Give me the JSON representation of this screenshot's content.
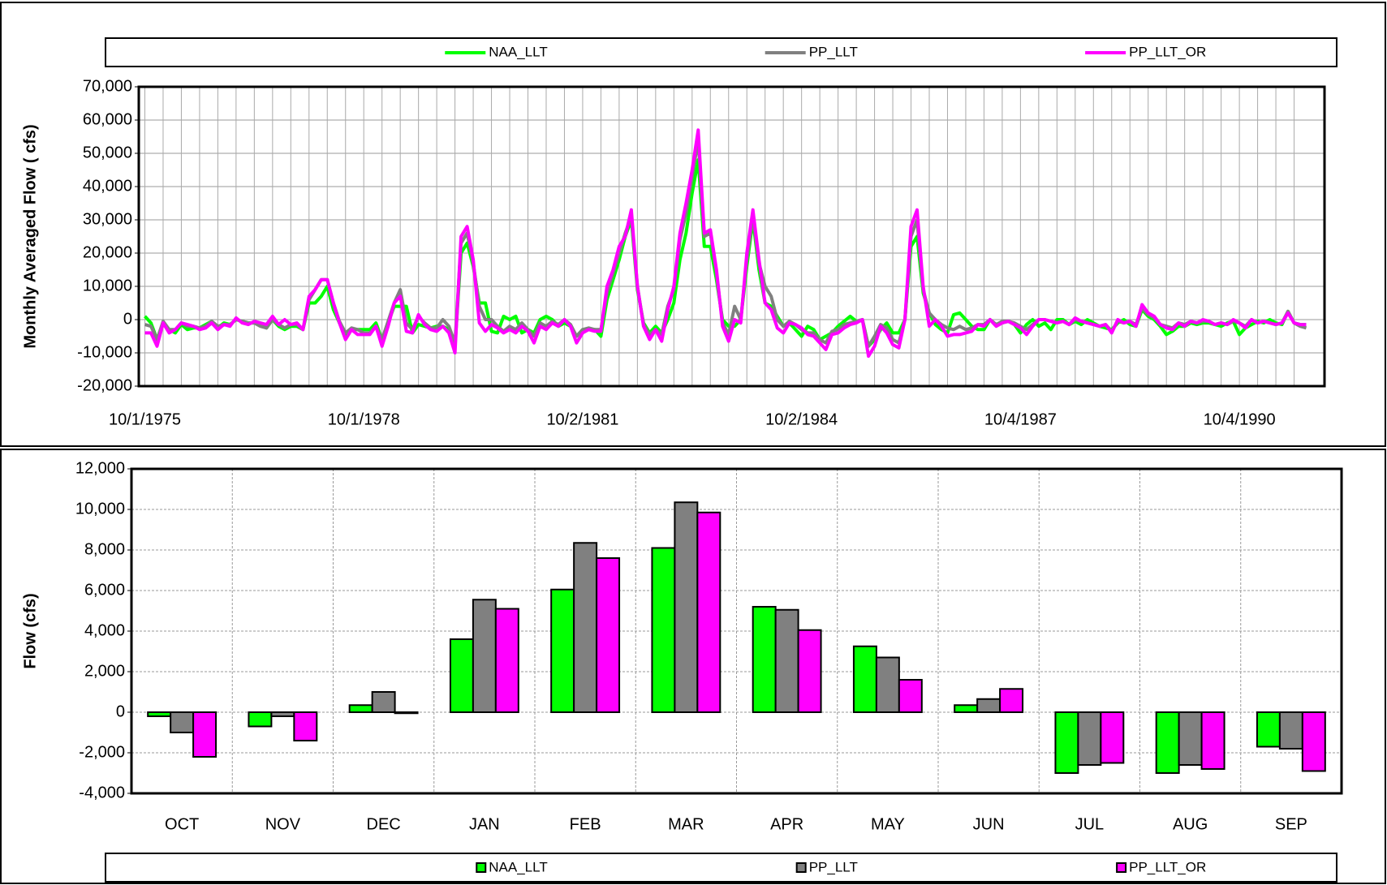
{
  "chart_data": [
    {
      "type": "line",
      "ylabel": "Monthly Averaged Flow  ( cfs)",
      "categories": [
        "10/1/1975",
        null,
        null,
        null,
        null,
        null,
        null,
        null,
        null,
        null,
        null,
        null,
        null,
        null,
        null,
        null,
        null,
        null,
        null,
        null,
        null,
        null,
        null,
        null,
        null,
        null,
        null,
        null,
        null,
        null,
        null,
        null,
        null,
        null,
        null,
        null,
        "10/1/1978",
        null,
        null,
        null,
        null,
        null,
        null,
        null,
        null,
        null,
        null,
        null,
        null,
        null,
        null,
        null,
        null,
        null,
        null,
        null,
        null,
        null,
        null,
        null,
        null,
        null,
        null,
        null,
        null,
        null,
        null,
        null,
        null,
        null,
        null,
        null,
        "10/2/1981",
        null,
        null,
        null,
        null,
        null,
        null,
        null,
        null,
        null,
        null,
        null,
        null,
        null,
        null,
        null,
        null,
        null,
        null,
        null,
        null,
        null,
        null,
        null,
        null,
        null,
        null,
        null,
        null,
        null,
        null,
        null,
        null,
        null,
        null,
        null,
        "10/2/1984",
        null,
        null,
        null,
        null,
        null,
        null,
        null,
        null,
        null,
        null,
        null,
        null,
        null,
        null,
        null,
        null,
        null,
        null,
        null,
        null,
        null,
        null,
        null,
        null,
        null,
        null,
        null,
        null,
        null,
        null,
        null,
        null,
        null,
        null,
        null,
        "10/4/1987",
        null,
        null,
        null,
        null,
        null,
        null,
        null,
        null,
        null,
        null,
        null,
        null,
        null,
        null,
        null,
        null,
        null,
        null,
        null,
        null,
        null,
        null,
        null,
        null,
        null,
        null,
        null,
        null,
        null,
        null,
        null,
        null,
        null,
        null,
        null,
        "10/4/1990",
        null,
        null,
        null,
        null,
        null,
        null,
        null,
        null,
        null,
        null,
        null
      ],
      "series": [
        {
          "name": "NAA_LLT",
          "color": "#00ff00",
          "values": [
            1000,
            -1000,
            -6000,
            -1000,
            -3000,
            -4000,
            -1500,
            -3000,
            -2500,
            -2500,
            -1500,
            -500,
            -2500,
            -1000,
            -1500,
            0,
            -500,
            -1000,
            -1000,
            -1500,
            -2500,
            0,
            -2000,
            -3000,
            -2000,
            -2000,
            -3000,
            5000,
            5000,
            7000,
            10000,
            3000,
            -1000,
            -5000,
            -3000,
            -3000,
            -3000,
            -3000,
            -1000,
            -6000,
            -1000,
            4000,
            4000,
            4000,
            -4000,
            -1500,
            -2000,
            -2500,
            -2000,
            -2000,
            -3000,
            -8000,
            20000,
            23000,
            16000,
            5000,
            5000,
            -3500,
            -4000,
            1000,
            0,
            1000,
            -4000,
            -3000,
            -4000,
            0,
            1000,
            0,
            -2000,
            -1000,
            -2000,
            -5000,
            -3000,
            -3000,
            -3000,
            -5000,
            6000,
            12000,
            18000,
            25000,
            30000,
            9000,
            -1000,
            -4000,
            -2000,
            -4000,
            0,
            5000,
            18000,
            26000,
            38000,
            48000,
            22000,
            22000,
            12000,
            0,
            -2000,
            -2000,
            0,
            16000,
            30000,
            15000,
            5000,
            4000,
            1000,
            -2000,
            -1000,
            -3000,
            -5000,
            -2000,
            -3000,
            -6000,
            -5000,
            -4000,
            -2000,
            -500,
            1000,
            -500,
            0,
            -8000,
            -6000,
            -3000,
            -1000,
            -4000,
            -4000,
            0,
            22000,
            25000,
            8000,
            2000,
            -1500,
            -3000,
            -4000,
            1500,
            2000,
            0,
            -2000,
            -3000,
            -3000,
            0,
            -1500,
            -1000,
            -500,
            -1500,
            -4000,
            -1500,
            0,
            -2000,
            -1000,
            -3000,
            0,
            0,
            -1500,
            -500,
            -1500,
            0,
            -1000,
            -2000,
            -2500,
            -3000,
            -1000,
            0,
            -1500,
            -2000,
            3000,
            1000,
            0,
            -2000,
            -4500,
            -3500,
            -2000,
            -2000,
            -1000,
            -1500,
            -1000,
            -1000,
            -1500,
            -2000,
            -1000,
            -500,
            -4500,
            -2500,
            -1500,
            -500,
            -1000,
            0,
            -1000,
            -1500,
            2500,
            -1000,
            -1500,
            -1500
          ]
        },
        {
          "name": "PP_LLT",
          "color": "#808080",
          "values": [
            -1500,
            -2000,
            -6000,
            -500,
            -3000,
            -3000,
            -1000,
            -2000,
            -2000,
            -2500,
            -2000,
            -500,
            -2000,
            -1500,
            -1500,
            0,
            -500,
            -1000,
            -1000,
            -2000,
            -2500,
            0,
            -1500,
            -2500,
            -1500,
            -1500,
            -3000,
            6000,
            9000,
            12000,
            12000,
            5000,
            -500,
            -4000,
            -2500,
            -3000,
            -4000,
            -4000,
            -2000,
            -6000,
            -500,
            5000,
            9000,
            -1000,
            -3000,
            1000,
            -1000,
            -2500,
            -2500,
            0,
            -2000,
            -7000,
            23000,
            26000,
            17000,
            4000,
            0,
            0,
            -2000,
            -3500,
            -2000,
            -3000,
            -1000,
            -3000,
            -5000,
            -1000,
            -2000,
            -500,
            -1500,
            0,
            -1500,
            -5000,
            -3000,
            -2500,
            -3000,
            -3000,
            8000,
            14000,
            20000,
            26000,
            31000,
            10000,
            -1500,
            -4500,
            -3000,
            -4500,
            4000,
            9000,
            24000,
            32000,
            43000,
            54000,
            25000,
            26000,
            14000,
            -1000,
            -4500,
            4000,
            0,
            18000,
            31000,
            17000,
            10000,
            7000,
            0,
            -2000,
            -500,
            -1500,
            -3000,
            -4000,
            -4000,
            -6000,
            -7000,
            -3500,
            -3000,
            -1500,
            -1000,
            -500,
            0,
            -8000,
            -5000,
            -1500,
            -2500,
            -6000,
            -7000,
            0,
            25000,
            30000,
            9000,
            2000,
            0,
            -1500,
            -2500,
            -3000,
            -2000,
            -3000,
            -2500,
            -1500,
            -1500,
            0,
            -1500,
            -500,
            -500,
            -1000,
            -2000,
            -3000,
            -1500,
            0,
            0,
            -500,
            -1000,
            -500,
            -1500,
            0,
            -500,
            -1000,
            -1500,
            -2000,
            -1500,
            -3500,
            -500,
            -1000,
            -500,
            -1500,
            3500,
            1500,
            500,
            -1500,
            -2000,
            -2500,
            -1000,
            -1500,
            -500,
            -1000,
            -500,
            -500,
            -1500,
            -1000,
            -1500,
            -500,
            -1000,
            -2000,
            0,
            -1000,
            -500,
            -1000,
            -1500,
            -1000,
            2500,
            -1000,
            -2000,
            -2500
          ]
        },
        {
          "name": "PP_LLT_OR",
          "color": "#ff00ff",
          "values": [
            -4000,
            -4000,
            -8000,
            -1000,
            -4000,
            -3000,
            -1000,
            -1500,
            -2000,
            -3000,
            -2500,
            -1000,
            -3000,
            -1500,
            -2000,
            500,
            -1000,
            -1500,
            -500,
            -1000,
            -1500,
            1000,
            -1500,
            0,
            -1500,
            -1000,
            -3000,
            7000,
            9000,
            12000,
            12000,
            5000,
            -1000,
            -6000,
            -3000,
            -4500,
            -4500,
            -4500,
            -2000,
            -8000,
            -2000,
            5000,
            7000,
            -3500,
            -4000,
            1500,
            -1500,
            -3000,
            -3500,
            -2000,
            -4000,
            -10000,
            25000,
            28000,
            18000,
            -1000,
            -3500,
            -1500,
            -2500,
            -4000,
            -3000,
            -4000,
            -2000,
            -3500,
            -7000,
            -2000,
            -3000,
            -1000,
            -2000,
            0,
            -2000,
            -7000,
            -4000,
            -3000,
            -3500,
            -3500,
            10000,
            15000,
            22000,
            25000,
            33000,
            10000,
            -2000,
            -6000,
            -3000,
            -6500,
            3000,
            10000,
            26000,
            35000,
            45000,
            57000,
            26000,
            27000,
            15000,
            -2000,
            -6500,
            0,
            -1000,
            20000,
            33000,
            18000,
            5000,
            3000,
            -2500,
            -4000,
            -1000,
            -1500,
            -2500,
            -4500,
            -5000,
            -7000,
            -9000,
            -4500,
            -4000,
            -2500,
            -1500,
            -1000,
            0,
            -11000,
            -8000,
            -2000,
            -4000,
            -7500,
            -8500,
            0,
            28000,
            33000,
            10000,
            -2000,
            0,
            -2000,
            -5000,
            -4500,
            -4500,
            -4000,
            -3500,
            -1500,
            -2000,
            0,
            -2000,
            -1000,
            -500,
            -1500,
            -2500,
            -4500,
            -2000,
            0,
            0,
            -500,
            -1000,
            -500,
            -1500,
            500,
            -500,
            -1000,
            -1500,
            -2000,
            -1500,
            -4000,
            0,
            -1000,
            -500,
            -2000,
            4500,
            2000,
            1000,
            -1500,
            -2500,
            -3000,
            -1000,
            -2000,
            -500,
            -1000,
            0,
            -500,
            -1500,
            -1000,
            -1500,
            0,
            -1000,
            -2500,
            0,
            -1000,
            -500,
            -1000,
            -1500,
            -1000,
            2000,
            -1000,
            -1500,
            -1500
          ]
        }
      ],
      "ylim": [
        -20000,
        70000
      ],
      "yticks": [
        {
          "value": -20000,
          "label": "-20,000"
        },
        {
          "value": -10000,
          "label": "-10,000"
        },
        0,
        {
          "value": 10000,
          "label": "10,000"
        },
        {
          "value": 20000,
          "label": "20,000"
        },
        {
          "value": 30000,
          "label": "30,000"
        },
        {
          "value": 40000,
          "label": "40,000"
        },
        {
          "value": 50000,
          "label": "50,000"
        },
        {
          "value": 60000,
          "label": "60,000"
        },
        {
          "value": 70000,
          "label": "70,000"
        }
      ],
      "grid": true,
      "legend": "top"
    },
    {
      "type": "bar",
      "ylabel": "Flow (cfs)",
      "categories": [
        "OCT",
        "NOV",
        "DEC",
        "JAN",
        "FEB",
        "MAR",
        "APR",
        "MAY",
        "JUN",
        "JUL",
        "AUG",
        "SEP"
      ],
      "series": [
        {
          "name": "NAA_LLT",
          "color": "#00ff00",
          "values": [
            -200,
            -700,
            350,
            3600,
            6050,
            8100,
            5200,
            3250,
            350,
            -3000,
            -3000,
            -1700
          ]
        },
        {
          "name": "PP_LLT",
          "color": "#808080",
          "values": [
            -1000,
            -200,
            1000,
            5550,
            8350,
            10350,
            5050,
            2700,
            650,
            -2600,
            -2600,
            -1800
          ]
        },
        {
          "name": "PP_LLT_OR",
          "color": "#ff00ff",
          "values": [
            -2200,
            -1400,
            -50,
            5100,
            7600,
            9850,
            4050,
            1600,
            1150,
            -2500,
            -2800,
            -2900
          ]
        }
      ],
      "ylim": [
        -4000,
        12000
      ],
      "yticks": [
        {
          "value": -4000,
          "label": "-4,000"
        },
        {
          "value": -2000,
          "label": "-2,000"
        },
        0,
        {
          "value": 2000,
          "label": "2,000"
        },
        {
          "value": 4000,
          "label": "4,000"
        },
        {
          "value": 6000,
          "label": "6,000"
        },
        {
          "value": 8000,
          "label": "8,000"
        },
        {
          "value": 10000,
          "label": "10,000"
        },
        {
          "value": 12000,
          "label": "12,000"
        }
      ],
      "grid": true,
      "legend": "bottom"
    }
  ]
}
